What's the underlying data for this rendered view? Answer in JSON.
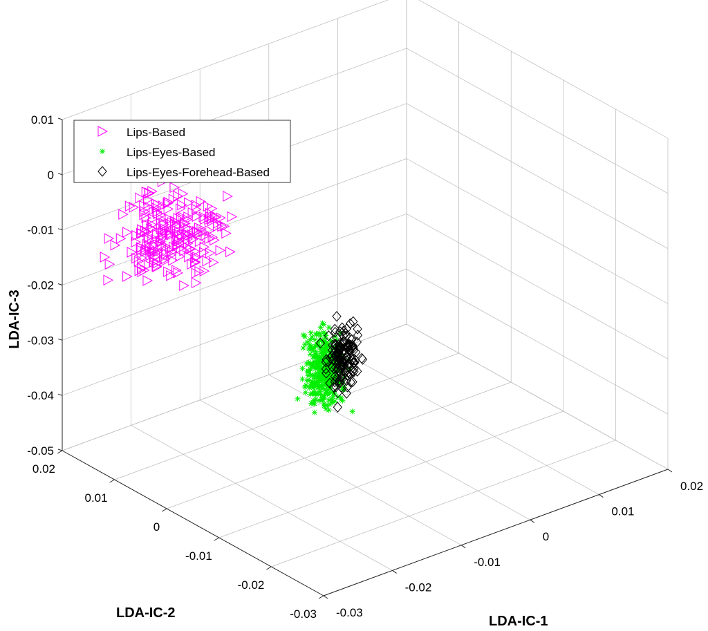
{
  "chart_data": {
    "type": "scatter",
    "dimensions": 3,
    "xlabel": "LDA-IC-1",
    "ylabel": "LDA-IC-2",
    "zlabel": "LDA-IC-3",
    "xlim": [
      -0.03,
      0.02
    ],
    "ylim": [
      -0.03,
      0.02
    ],
    "zlim": [
      -0.05,
      0.01
    ],
    "xticks": [
      "-0.03",
      "-0.02",
      "-0.01",
      "0",
      "0.01",
      "0.02"
    ],
    "yticks": [
      "-0.03",
      "-0.02",
      "-0.01",
      "0",
      "0.01",
      "0.02"
    ],
    "zticks": [
      "-0.05",
      "-0.04",
      "-0.03",
      "-0.02",
      "-0.01",
      "0",
      "0.01"
    ],
    "grid": true,
    "legend_position": "top-left",
    "series": [
      {
        "name": "Lips-Based",
        "marker": "triangle-right",
        "color": "#ff00ff",
        "cluster_center": {
          "x": -0.023,
          "y": 0.008,
          "z": -0.008
        },
        "cluster_spread": {
          "x": 0.0035,
          "y": 0.0025,
          "z": 0.006
        },
        "count": 220
      },
      {
        "name": "Lips-Eyes-Based",
        "marker": "star",
        "color": "#00ee00",
        "cluster_center": {
          "x": -0.0095,
          "y": -0.0032,
          "z": -0.032
        },
        "cluster_spread": {
          "x": 0.0012,
          "y": 0.001,
          "z": 0.006
        },
        "count": 360
      },
      {
        "name": "Lips-Eyes-Forehead-Based",
        "marker": "diamond",
        "color": "#000000",
        "cluster_center": {
          "x": -0.0075,
          "y": -0.0042,
          "z": -0.031
        },
        "cluster_spread": {
          "x": 0.0009,
          "y": 0.0009,
          "z": 0.0055
        },
        "count": 150
      }
    ]
  }
}
